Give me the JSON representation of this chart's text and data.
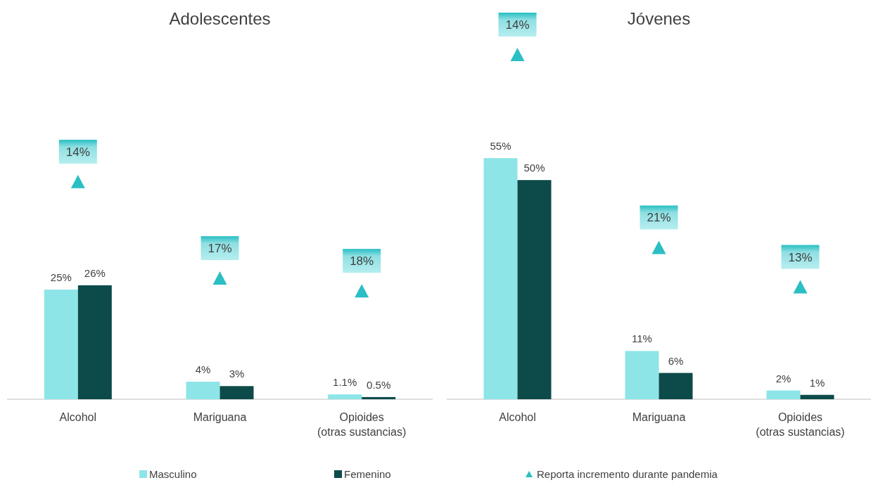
{
  "chart_data": [
    {
      "type": "bar",
      "title": "Adolescentes",
      "categories": [
        "Alcohol",
        "Mariguana",
        "Opioides\n(otras sustancias)"
      ],
      "tick_labels": "x",
      "legend": "bottom",
      "series": [
        {
          "name": "Masculino",
          "color": "#8ee5e8",
          "values": [
            25,
            4,
            1.1
          ],
          "value_labels": [
            "25%",
            "4%",
            "1.1%"
          ]
        },
        {
          "name": "Femenino",
          "color": "#0d4a4a",
          "values": [
            26,
            3,
            0.5
          ],
          "value_labels": [
            "26%",
            "3%",
            "0.5%"
          ]
        }
      ],
      "annotations": [
        "14%",
        "17%",
        "18%",
        "Reporta incremento durante pandemia"
      ]
    },
    {
      "type": "bar",
      "title": "Jóvenes",
      "categories": [
        "Alcohol",
        "Mariguana",
        "Opioides\n(otras sustancias)"
      ],
      "tick_labels": "x",
      "series": [
        {
          "color": "#8ee5e8",
          "values": [
            55,
            11,
            2
          ],
          "value_labels": [
            "55%",
            "11%",
            "2%"
          ]
        },
        {
          "color": "#0d4a4a",
          "values": [
            50,
            6,
            1
          ],
          "value_labels": [
            "50%",
            "6%",
            "1%"
          ]
        }
      ],
      "annotations": [
        "14%",
        "21%",
        "13%"
      ]
    }
  ]
}
